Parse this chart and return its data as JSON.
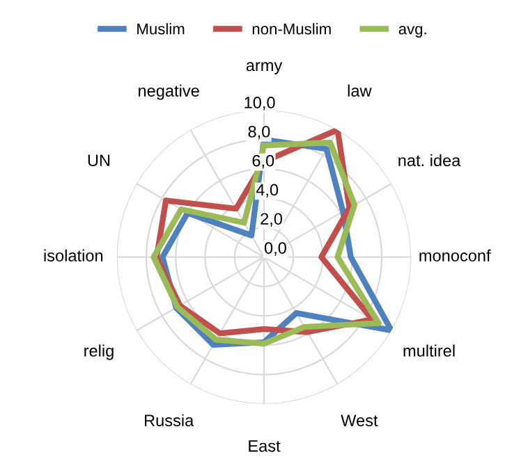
{
  "chart_data": {
    "type": "radar",
    "categories": [
      "army",
      "law",
      "nat. idea",
      "monoconf",
      "multirel",
      "West",
      "East",
      "Russia",
      "relig",
      "isolation",
      "UN",
      "negative"
    ],
    "series": [
      {
        "name": "Muslim",
        "color": "#4f81bd",
        "values": [
          8.0,
          8.5,
          6.2,
          5.9,
          10.0,
          4.4,
          5.8,
          6.9,
          6.9,
          6.9,
          6.0,
          1.7
        ]
      },
      {
        "name": "non-Muslim",
        "color": "#c0504d",
        "values": [
          6.5,
          10.0,
          6.7,
          3.9,
          8.5,
          5.9,
          4.9,
          6.0,
          6.6,
          7.3,
          7.7,
          3.8
        ]
      },
      {
        "name": "avg.",
        "color": "#9bbb59",
        "values": [
          7.6,
          9.0,
          7.1,
          5.0,
          9.0,
          5.5,
          5.9,
          6.5,
          6.8,
          7.5,
          6.5,
          2.7
        ]
      }
    ],
    "ylim": [
      0,
      10
    ],
    "yticks": [
      {
        "value": 0,
        "label": "0,0"
      },
      {
        "value": 2,
        "label": "2,0"
      },
      {
        "value": 4,
        "label": "4,0"
      },
      {
        "value": 6,
        "label": "6,0"
      },
      {
        "value": 8,
        "label": "8,0"
      },
      {
        "value": 10,
        "label": "10,0"
      }
    ],
    "grid": true,
    "legend": "top",
    "marker": "none",
    "line_style": "solid"
  }
}
